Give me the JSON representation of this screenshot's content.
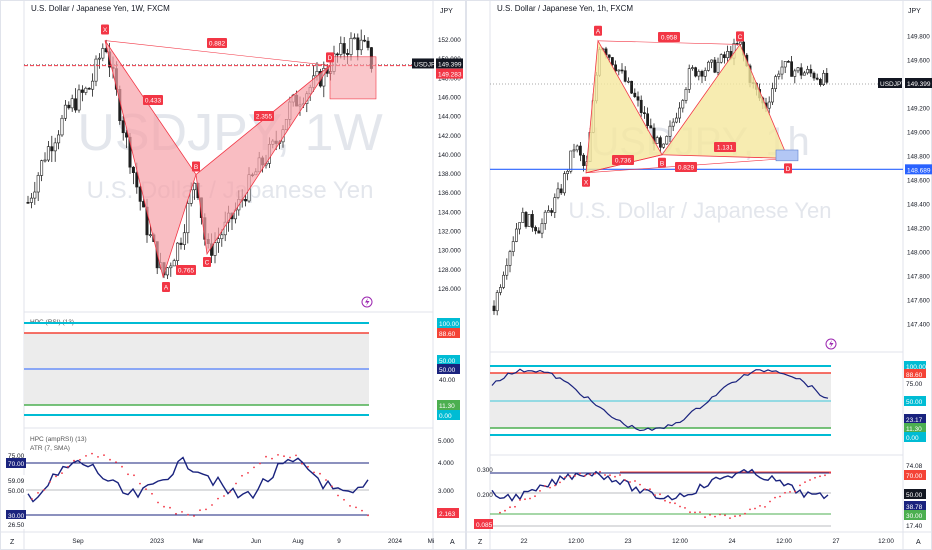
{
  "colors": {
    "up": "#1e1e1e",
    "down": "#1e1e1e",
    "pattern_red": "#f23645",
    "pattern_red_fill": "#f7a1a8",
    "pattern_yellow_fill": "#f5e79e",
    "axis_text": "#131722",
    "blue_line": "#2962ff",
    "rsi_blue": "#1a237e",
    "cyan": "#00bcd4",
    "red_level": "#f44336",
    "green_level": "#4caf50",
    "gray_level": "#787b86"
  },
  "left": {
    "title": "U.S. Dollar / Japanese Yen, 1W, FXCM",
    "watermark_symbol": "USDJPY, 1W",
    "watermark_name": "U.S. Dollar / Japanese Yen",
    "currency_label": "JPY",
    "y_ticks": [
      "152.000",
      "150.000",
      "148.000",
      "146.000",
      "144.000",
      "142.000",
      "140.000",
      "138.000",
      "136.000",
      "134.000",
      "132.000",
      "130.000",
      "128.000",
      "126.000"
    ],
    "price_tag_symbol": "USDJPY",
    "price_tag_value": "149.399",
    "target_tag_value": "149.283",
    "x_ticks": [
      "Sep",
      "2023",
      "Mar",
      "Jun",
      "Aug",
      "9",
      "2024",
      "Mi"
    ],
    "points": {
      "X": "X",
      "A": "A",
      "B": "B",
      "C": "C",
      "D": "D"
    },
    "ratios": {
      "xb": "0.433",
      "ac": "0.765",
      "bd": "2.355",
      "xd": "0.882"
    },
    "rsi_title": "HPC (RSI) (13)",
    "rsi_tags": [
      "100.00",
      "88.60",
      "50.00",
      "40.00",
      "11.30",
      "0.00"
    ],
    "amp_title": "HPC (ampRSI) (13)",
    "atr_title": "ATR (7, SMA)",
    "amp_left_tags": [
      "75.00",
      "70.00",
      "59.09",
      "50.00",
      "30.00",
      "26.50"
    ],
    "amp_right_ticks": [
      "5.000",
      "4.000",
      "3.000"
    ],
    "amp_right_tag": "2.163"
  },
  "right": {
    "title": "U.S. Dollar / Japanese Yen, 1h, FXCM",
    "watermark_symbol": "USDJPY, 1h",
    "watermark_name": "U.S. Dollar / Japanese Yen",
    "currency_label": "JPY",
    "y_ticks": [
      "149.800",
      "149.600",
      "149.400",
      "149.200",
      "149.000",
      "148.800",
      "148.600",
      "148.400",
      "148.200",
      "148.000",
      "147.800",
      "147.600",
      "147.400"
    ],
    "price_tag_symbol": "USDJPY",
    "price_tag_value": "149.399",
    "level_tag_value": "148.689",
    "x_ticks": [
      "22",
      "12:00",
      "23",
      "12:00",
      "24",
      "12:00",
      "27",
      "12:00"
    ],
    "points": {
      "X": "X",
      "A": "A",
      "B": "B",
      "C": "C",
      "D": "D"
    },
    "ratios": {
      "xa_top": "0.958",
      "xb": "0.736",
      "bd": "1.131",
      "xd": "0.829"
    },
    "rsi_tags": [
      "100.00",
      "88.60",
      "75.00",
      "50.00",
      "23.17",
      "11.30",
      "0.00"
    ],
    "amp_left_ticks": [
      "0.300",
      "0.200"
    ],
    "amp_left_tag": "0.085",
    "amp_tags": [
      "74.08",
      "70.00",
      "50.00",
      "38.78",
      "30.00",
      "17.40"
    ]
  },
  "bottom_icons": {
    "zoom_left": "Z",
    "auto_left": "A",
    "zoom_right": "Z",
    "auto_right": "A"
  },
  "chart_data": [
    {
      "type": "candlestick",
      "title": "U.S. Dollar / Japanese Yen, 1W, FXCM",
      "ylim": [
        125,
        153
      ],
      "pattern": {
        "type": "bat",
        "X": 151.9,
        "A": 127.2,
        "B": 137.9,
        "C": 129.6,
        "D": 149.3
      },
      "ratios": [
        0.433,
        0.765,
        2.355,
        0.882
      ],
      "last_price": 149.399
    },
    {
      "type": "candlestick",
      "title": "U.S. Dollar / Japanese Yen, 1h, FXCM",
      "ylim": [
        147.3,
        149.95
      ],
      "pattern": {
        "type": "bat",
        "X": 148.66,
        "A": 149.76,
        "B": 148.81,
        "C": 149.73,
        "D": 148.78
      },
      "ratios": [
        0.958,
        0.736,
        1.131,
        0.829
      ],
      "last_price": 149.399,
      "support_level": 148.689
    }
  ]
}
